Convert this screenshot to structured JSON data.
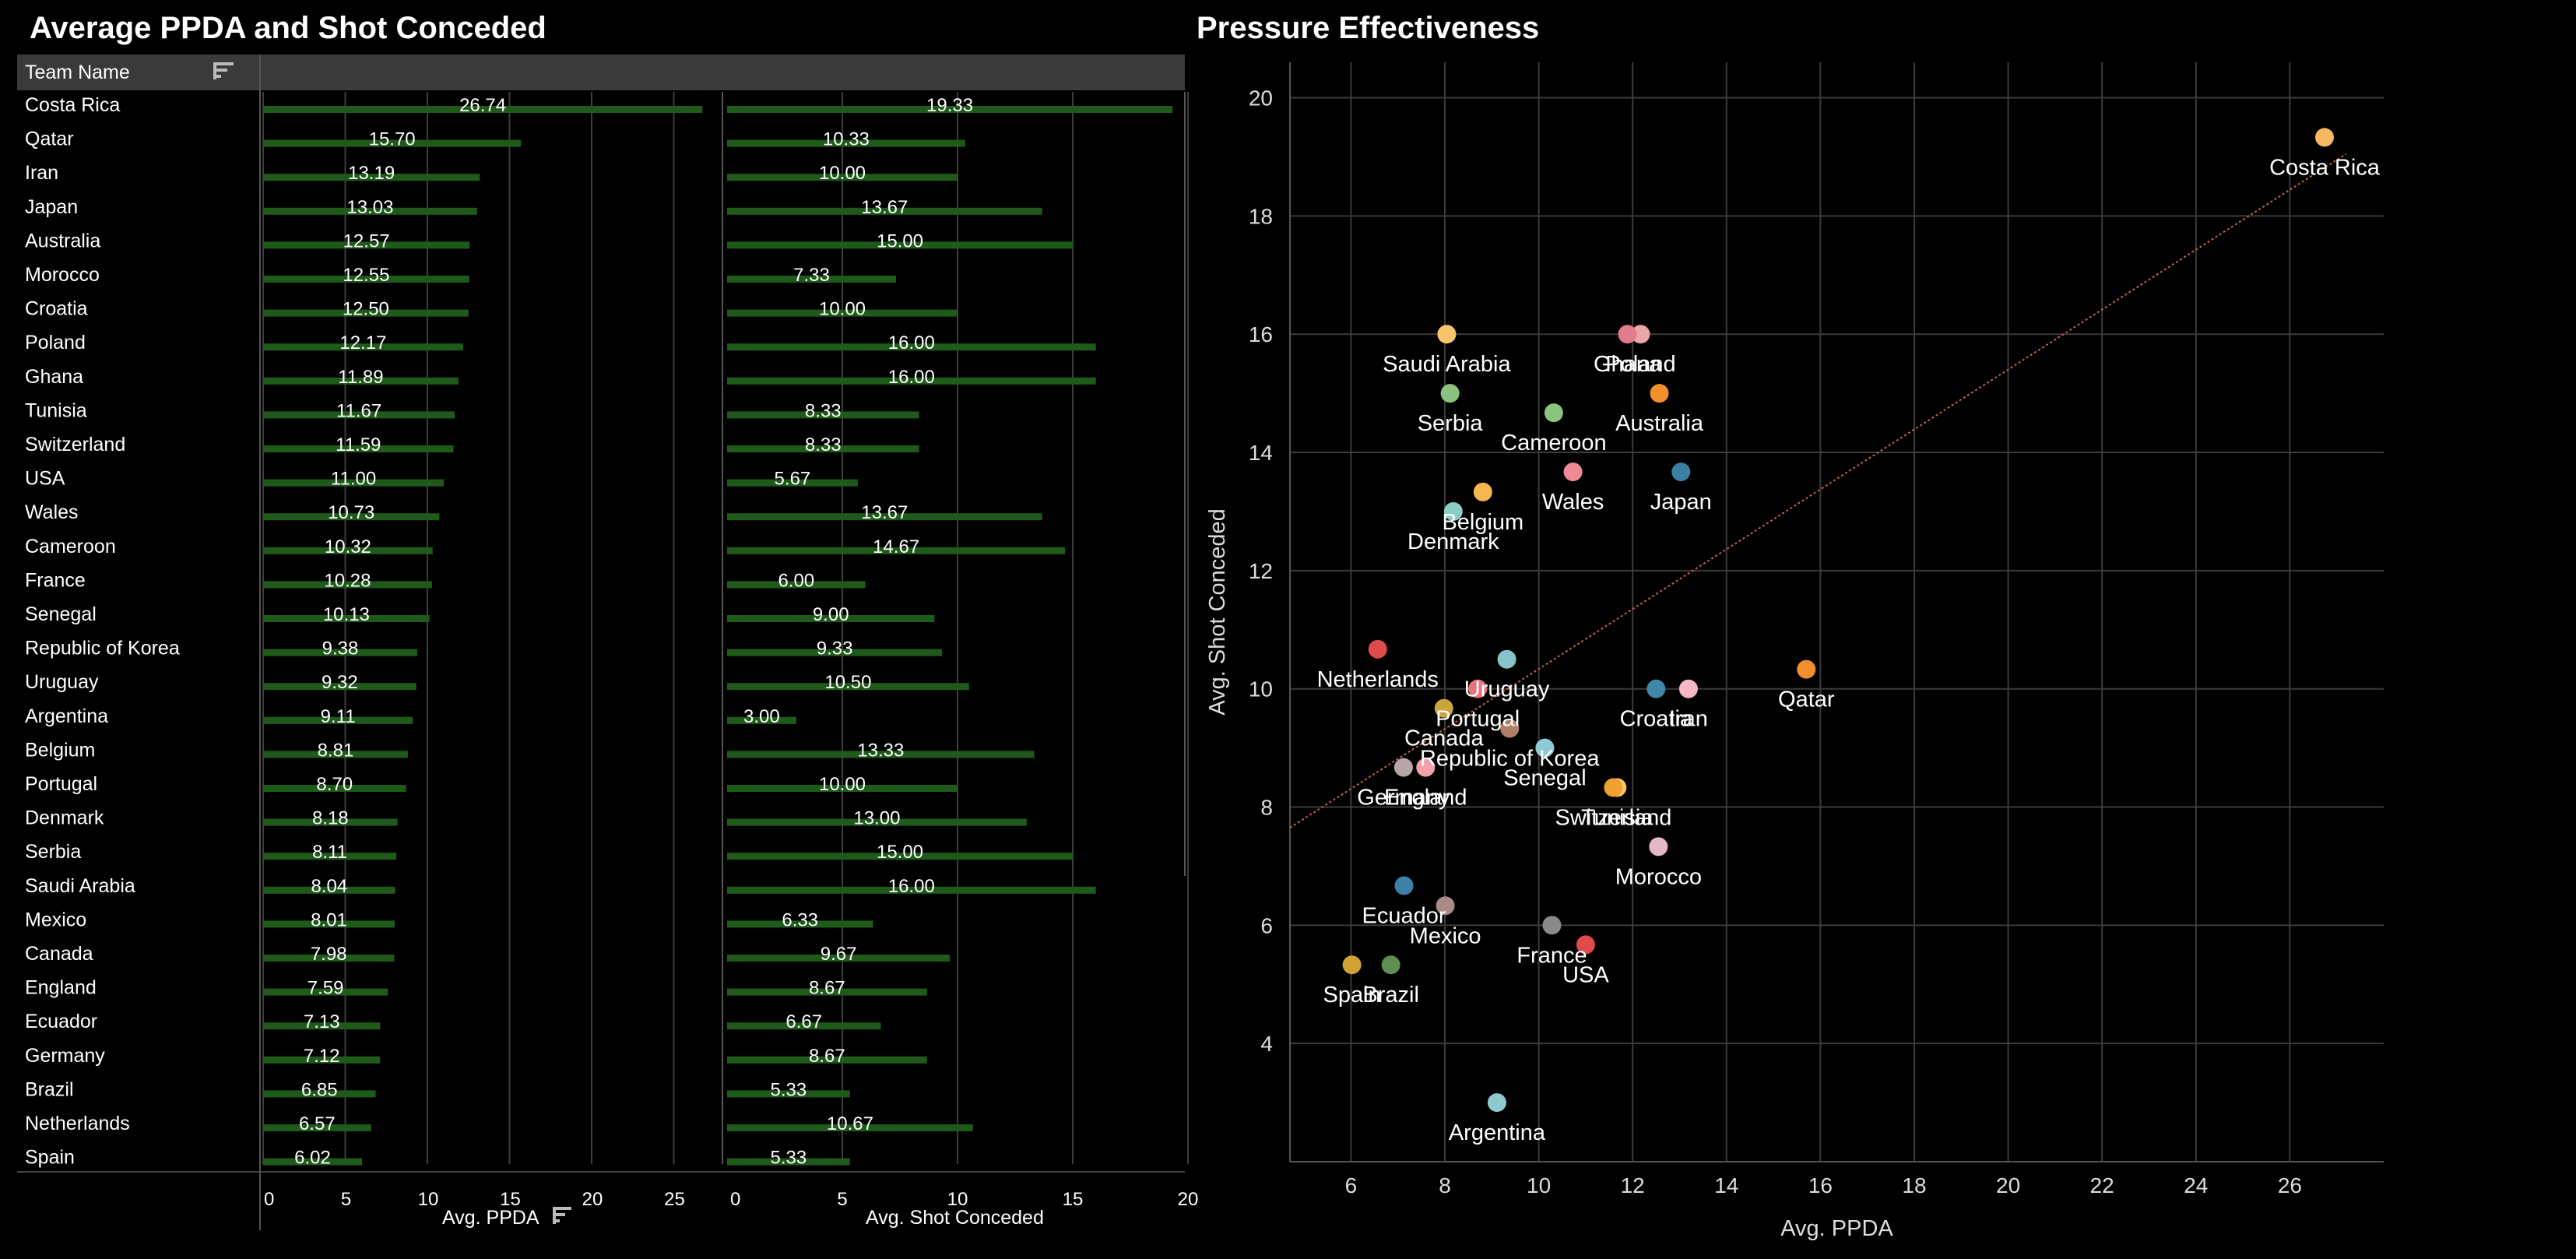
{
  "left_panel": {
    "title": "Average PPDA and Shot Conceded",
    "team_header": "Team Name",
    "xlabel_ppda": "Avg. PPDA",
    "xlabel_shots": "Avg. Shot Conceded",
    "sort_icon": "sort-icon"
  },
  "right_panel": {
    "title": "Pressure Effectiveness"
  },
  "colors": {
    "bar": "#1f5a1b",
    "header_bg": "#3a3a3a",
    "grid": "#3d3d3d",
    "trend": "#c0624a"
  },
  "chart_data": [
    {
      "type": "bar",
      "title": "Average PPDA and Shot Conceded",
      "categories": [
        "Costa Rica",
        "Qatar",
        "Iran",
        "Japan",
        "Australia",
        "Morocco",
        "Croatia",
        "Poland",
        "Ghana",
        "Tunisia",
        "Switzerland",
        "USA",
        "Wales",
        "Cameroon",
        "France",
        "Senegal",
        "Republic of Korea",
        "Uruguay",
        "Argentina",
        "Belgium",
        "Portugal",
        "Denmark",
        "Serbia",
        "Saudi Arabia",
        "Mexico",
        "Canada",
        "England",
        "Ecuador",
        "Germany",
        "Brazil",
        "Netherlands",
        "Spain"
      ],
      "series": [
        {
          "name": "Avg. PPDA",
          "values": [
            26.74,
            15.7,
            13.19,
            13.03,
            12.57,
            12.55,
            12.5,
            12.17,
            11.89,
            11.67,
            11.59,
            11.0,
            10.73,
            10.32,
            10.28,
            10.13,
            9.38,
            9.32,
            9.11,
            8.81,
            8.7,
            8.18,
            8.11,
            8.04,
            8.01,
            7.98,
            7.59,
            7.13,
            7.12,
            6.85,
            6.57,
            6.02
          ],
          "labels": [
            "26.74",
            "15.70",
            "13.19",
            "13.03",
            "12.57",
            "12.55",
            "12.50",
            "12.17",
            "11.89",
            "11.67",
            "11.59",
            "11.00",
            "10.73",
            "10.32",
            "10.28",
            "10.13",
            "9.38",
            "9.32",
            "9.11",
            "8.81",
            "8.70",
            "8.18",
            "8.11",
            "8.04",
            "8.01",
            "7.98",
            "7.59",
            "7.13",
            "7.12",
            "6.85",
            "6.57",
            "6.02"
          ],
          "xlim": [
            0,
            28
          ],
          "ticks": [
            "0",
            "5",
            "10",
            "15",
            "20",
            "25"
          ]
        },
        {
          "name": "Avg. Shot Conceded",
          "values": [
            19.33,
            10.33,
            10.0,
            13.67,
            15.0,
            7.33,
            10.0,
            16.0,
            16.0,
            8.33,
            8.33,
            5.67,
            13.67,
            14.67,
            6.0,
            9.0,
            9.33,
            10.5,
            3.0,
            13.33,
            10.0,
            13.0,
            15.0,
            16.0,
            6.33,
            9.67,
            8.67,
            6.67,
            8.67,
            5.33,
            10.67,
            5.33
          ],
          "labels": [
            "19.33",
            "10.33",
            "10.00",
            "13.67",
            "15.00",
            "7.33",
            "10.00",
            "16.00",
            "16.00",
            "8.33",
            "8.33",
            "5.67",
            "13.67",
            "14.67",
            "6.00",
            "9.00",
            "9.33",
            "10.50",
            "3.00",
            "13.33",
            "10.00",
            "13.00",
            "15.00",
            "16.00",
            "6.33",
            "9.67",
            "8.67",
            "6.67",
            "8.67",
            "5.33",
            "10.67",
            "5.33"
          ],
          "xlim": [
            0,
            20
          ],
          "ticks": [
            "0",
            "5",
            "10",
            "15",
            "20"
          ]
        }
      ]
    },
    {
      "type": "scatter",
      "title": "Pressure Effectiveness",
      "xlabel": "Avg. PPDA",
      "ylabel": "Avg. Shot Conceded",
      "xlim": [
        4.7,
        28
      ],
      "ylim": [
        2,
        20.6
      ],
      "xticks": [
        "6",
        "8",
        "10",
        "12",
        "14",
        "16",
        "18",
        "20",
        "22",
        "24",
        "26"
      ],
      "yticks": [
        "4",
        "6",
        "8",
        "10",
        "12",
        "14",
        "16",
        "18",
        "20"
      ],
      "trendline": {
        "x": [
          4.7,
          27.2
        ],
        "y": [
          7.65,
          19.05
        ]
      },
      "points": [
        {
          "team": "Costa Rica",
          "x": 26.74,
          "y": 19.33,
          "color": "#f8b862",
          "label_pos": "below"
        },
        {
          "team": "Qatar",
          "x": 15.7,
          "y": 10.33,
          "color": "#f28e2b",
          "label_pos": "below"
        },
        {
          "team": "Iran",
          "x": 13.19,
          "y": 10.0,
          "color": "#f6b6c3",
          "label_pos": "below"
        },
        {
          "team": "Japan",
          "x": 13.03,
          "y": 13.67,
          "color": "#3b7fa6",
          "label_pos": "below"
        },
        {
          "team": "Australia",
          "x": 12.57,
          "y": 15.0,
          "color": "#f28e2b",
          "label_pos": "below"
        },
        {
          "team": "Morocco",
          "x": 12.55,
          "y": 7.33,
          "color": "#e6b7c6",
          "label_pos": "below"
        },
        {
          "team": "Croatia",
          "x": 12.5,
          "y": 10.0,
          "color": "#3f86a8",
          "label_pos": "below"
        },
        {
          "team": "Poland",
          "x": 12.17,
          "y": 16.0,
          "color": "#e9a5a8",
          "label_pos": "below"
        },
        {
          "team": "Ghana",
          "x": 11.89,
          "y": 16.0,
          "color": "#e37b8e",
          "label_pos": "below"
        },
        {
          "team": "Tunisia",
          "x": 11.67,
          "y": 8.33,
          "color": "#f6c95f",
          "label_pos": "below"
        },
        {
          "team": "Switzerland",
          "x": 11.59,
          "y": 8.33,
          "color": "#f1a033",
          "label_pos": "below"
        },
        {
          "team": "USA",
          "x": 11.0,
          "y": 5.67,
          "color": "#e04a4a",
          "label_pos": "below"
        },
        {
          "team": "Wales",
          "x": 10.73,
          "y": 13.67,
          "color": "#ef8a94",
          "label_pos": "below"
        },
        {
          "team": "Cameroon",
          "x": 10.32,
          "y": 14.67,
          "color": "#8cc47e",
          "label_pos": "below"
        },
        {
          "team": "France",
          "x": 10.28,
          "y": 6.0,
          "color": "#8a8a8a",
          "label_pos": "below"
        },
        {
          "team": "Senegal",
          "x": 10.13,
          "y": 9.0,
          "color": "#8ecad6",
          "label_pos": "below"
        },
        {
          "team": "Republic of Korea",
          "x": 9.38,
          "y": 9.33,
          "color": "#b07f6a",
          "label_pos": "below"
        },
        {
          "team": "Uruguay",
          "x": 9.32,
          "y": 10.5,
          "color": "#87c3c9",
          "label_pos": "below"
        },
        {
          "team": "Argentina",
          "x": 9.11,
          "y": 3.0,
          "color": "#8fc9cf",
          "label_pos": "below"
        },
        {
          "team": "Belgium",
          "x": 8.81,
          "y": 13.33,
          "color": "#f6b64f",
          "label_pos": "below"
        },
        {
          "team": "Portugal",
          "x": 8.7,
          "y": 10.0,
          "color": "#e9737f",
          "label_pos": "below"
        },
        {
          "team": "Denmark",
          "x": 8.18,
          "y": 13.0,
          "color": "#8ccfc2",
          "label_pos": "below"
        },
        {
          "team": "Serbia",
          "x": 8.11,
          "y": 15.0,
          "color": "#8bc27f",
          "label_pos": "below"
        },
        {
          "team": "Saudi Arabia",
          "x": 8.04,
          "y": 16.0,
          "color": "#f8c56c",
          "label_pos": "below"
        },
        {
          "team": "Mexico",
          "x": 8.01,
          "y": 6.33,
          "color": "#a88a88",
          "label_pos": "below"
        },
        {
          "team": "Canada",
          "x": 7.98,
          "y": 9.67,
          "color": "#c9a63e",
          "label_pos": "below"
        },
        {
          "team": "England",
          "x": 7.59,
          "y": 8.67,
          "color": "#f2a0aa",
          "label_pos": "below"
        },
        {
          "team": "Ecuador",
          "x": 7.13,
          "y": 6.67,
          "color": "#3c82a8",
          "label_pos": "below"
        },
        {
          "team": "Germany",
          "x": 7.12,
          "y": 8.67,
          "color": "#b7a5a7",
          "label_pos": "below"
        },
        {
          "team": "Brazil",
          "x": 6.85,
          "y": 5.33,
          "color": "#5f8f52",
          "label_pos": "below"
        },
        {
          "team": "Netherlands",
          "x": 6.57,
          "y": 10.67,
          "color": "#e04a4a",
          "label_pos": "below"
        },
        {
          "team": "Spain",
          "x": 6.02,
          "y": 5.33,
          "color": "#d0a232",
          "label_pos": "below"
        }
      ]
    }
  ]
}
